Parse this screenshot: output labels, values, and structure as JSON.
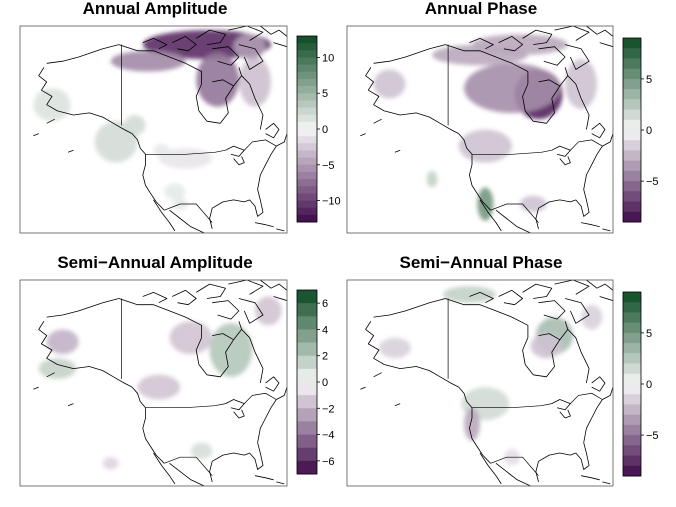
{
  "chart_data": [
    {
      "type": "heatmap",
      "title": "Annual Amplitude",
      "colorbar": {
        "range": [
          -13,
          13
        ],
        "ticks": [
          10,
          5,
          0,
          -5,
          -10
        ],
        "tick_labels": [
          "10",
          "5",
          "0",
          "−5",
          "−10"
        ],
        "bins": 26
      },
      "blobs": [
        {
          "region": "northern Canada / Arctic coast",
          "value": -11
        },
        {
          "region": "northwest Canada band",
          "value": -6
        },
        {
          "region": "Hudson Bay west",
          "value": -7
        },
        {
          "region": "Labrador",
          "value": -3
        },
        {
          "region": "Baffin",
          "value": -5
        },
        {
          "region": "Pacific ocean west",
          "value": 1.5
        },
        {
          "region": "Pacific ocean south",
          "value": 2
        },
        {
          "region": "Pacific coast",
          "value": 2
        },
        {
          "region": "Great Plains",
          "value": -1
        },
        {
          "region": "Texas",
          "value": 1
        },
        {
          "region": "northern US",
          "value": 1
        },
        {
          "region": "Mexico",
          "value": 1
        }
      ]
    },
    {
      "type": "heatmap",
      "title": "Annual Phase",
      "colorbar": {
        "range": [
          -9,
          9
        ],
        "ticks": [
          5,
          0,
          -5
        ],
        "tick_labels": [
          "5",
          "0",
          "−5"
        ],
        "bins": 18
      },
      "blobs": [
        {
          "region": "Hudson Bay",
          "value": -8
        },
        {
          "region": "central Canada",
          "value": -4
        },
        {
          "region": "Arctic coast",
          "value": -3
        },
        {
          "region": "Arctic islands",
          "value": -3
        },
        {
          "region": "Alaska",
          "value": -2
        },
        {
          "region": "Labrador",
          "value": -2
        },
        {
          "region": "US northwest",
          "value": -2
        },
        {
          "region": "Baja California",
          "value": 5
        },
        {
          "region": "Pacific ocean",
          "value": 2
        },
        {
          "region": "Gulf coast",
          "value": -2
        }
      ]
    },
    {
      "type": "heatmap",
      "title": "Semi−Annual Amplitude",
      "colorbar": {
        "range": [
          -7,
          7
        ],
        "ticks": [
          6,
          4,
          2,
          0,
          -2,
          -4,
          -6
        ],
        "tick_labels": [
          "6",
          "4",
          "2",
          "0",
          "−2",
          "−4",
          "−6"
        ],
        "bins": 14
      },
      "blobs": [
        {
          "region": "Quebec / Great Lakes",
          "value": 2
        },
        {
          "region": "Hudson Bay west",
          "value": -1.5
        },
        {
          "region": "Alaska",
          "value": -2
        },
        {
          "region": "Pacific ocean",
          "value": 1.5
        },
        {
          "region": "Great Plains",
          "value": -1.5
        },
        {
          "region": "Labrador",
          "value": -1.5
        },
        {
          "region": "Mexico",
          "value": -1
        },
        {
          "region": "Texas",
          "value": 1
        }
      ]
    },
    {
      "type": "heatmap",
      "title": "Semi−Annual Phase",
      "colorbar": {
        "range": [
          -9,
          9
        ],
        "ticks": [
          5,
          0,
          -5
        ],
        "tick_labels": [
          "5",
          "0",
          "−5"
        ],
        "bins": 18
      },
      "blobs": [
        {
          "region": "Quebec",
          "value": 3
        },
        {
          "region": "Hudson Bay",
          "value": -2
        },
        {
          "region": "Arctic coast",
          "value": 2
        },
        {
          "region": "Alaska",
          "value": -1.5
        },
        {
          "region": "western US",
          "value": 1.5
        },
        {
          "region": "Pacific coast",
          "value": -3
        },
        {
          "region": "Labrador",
          "value": -1.5
        },
        {
          "region": "Mexico",
          "value": -1
        }
      ]
    }
  ],
  "colors": {
    "negative_end": "#3f0a4a",
    "neutral": "#f7f7f7",
    "positive_end": "#0b4a22"
  }
}
